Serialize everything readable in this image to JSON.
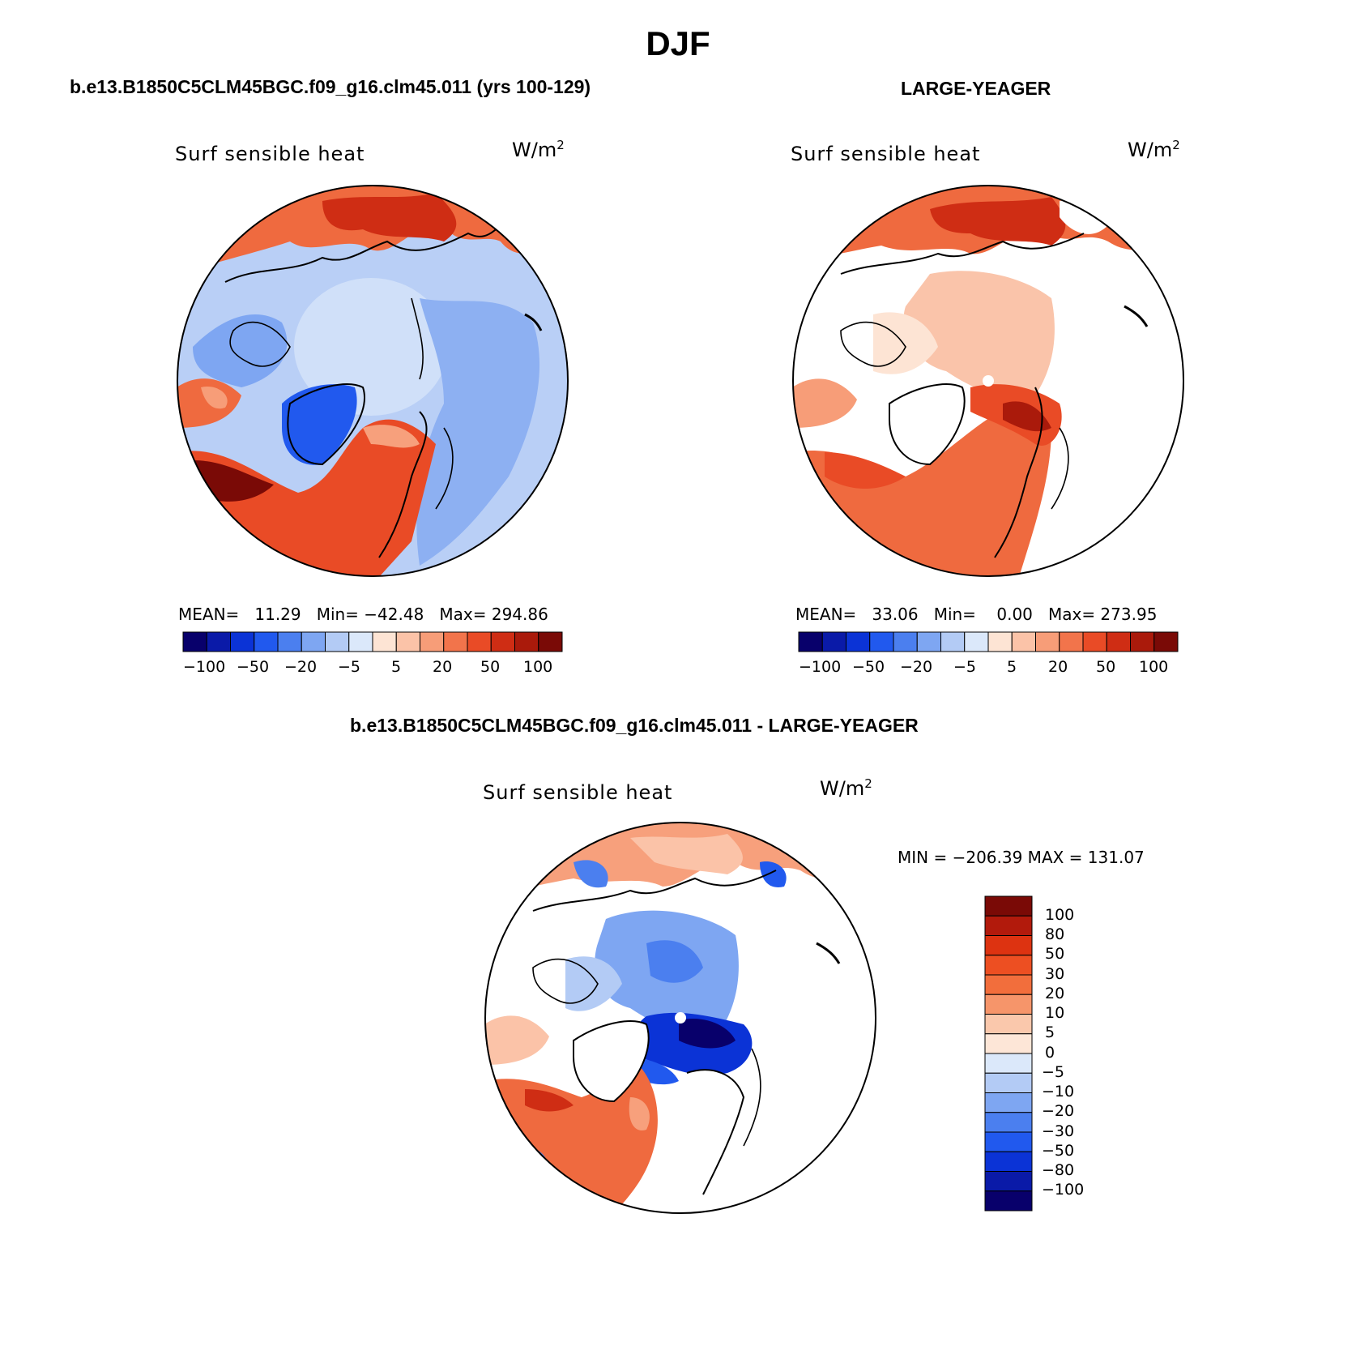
{
  "figure": {
    "season": "DJF"
  },
  "panels": [
    {
      "case": "b.e13.B1850C5CLM45BGC.f09_g16.clm45.011 (yrs 100-129)",
      "variable": "Surf sensible heat",
      "units_base": "W/m",
      "units_exp": "2",
      "stats": "MEAN=   11.29   Min= -42.48   Max= 294.86",
      "colorbar_labels": [
        "-100",
        "-50",
        "-20",
        "-5",
        "5",
        "20",
        "50",
        "100"
      ]
    },
    {
      "case": "LARGE-YEAGER",
      "variable": "Surf sensible heat",
      "units_base": "W/m",
      "units_exp": "2",
      "stats": "MEAN=   33.06   Min=    0.00   Max= 273.95",
      "colorbar_labels": [
        "-100",
        "-50",
        "-20",
        "-5",
        "5",
        "20",
        "50",
        "100"
      ]
    },
    {
      "case": "b.e13.B1850C5CLM45BGC.f09_g16.clm45.011 - LARGE-YEAGER",
      "variable": "Surf sensible heat",
      "units_base": "W/m",
      "units_exp": "2",
      "stats": "MIN = -206.39 MAX = 131.07",
      "colorbar_labels": [
        "100",
        "80",
        "50",
        "30",
        "20",
        "10",
        "5",
        "0",
        "-5",
        "-10",
        "-20",
        "-30",
        "-50",
        "-80",
        "-100"
      ]
    }
  ],
  "colors": {
    "abs_scale": [
      "#08006b",
      "#0a1aa8",
      "#0b33d6",
      "#2159ee",
      "#4b7fef",
      "#7ea6f2",
      "#b3cbf5",
      "#dbe8fa",
      "#fde4d4",
      "#fbc3a8",
      "#f79d78",
      "#f2744b",
      "#e94b26",
      "#cf2d14",
      "#aa1a0b",
      "#7a0a06"
    ],
    "diff_scale": [
      "#7a0a06",
      "#b21a0c",
      "#dd3311",
      "#ed4f22",
      "#f26e3c",
      "#f6956a",
      "#fac8ac",
      "#fde6d7",
      "#dbe8fa",
      "#b3cbf5",
      "#7ea6f2",
      "#4b7fef",
      "#2159ee",
      "#0b33d6",
      "#0a1aa8",
      "#08006b"
    ]
  }
}
